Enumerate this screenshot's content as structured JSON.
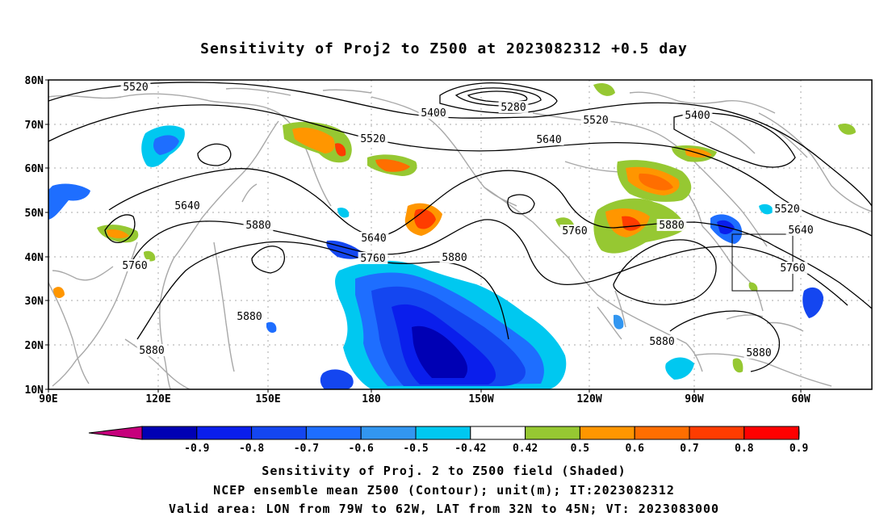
{
  "title": "Sensitivity of Proj2 to Z500 at 2023082312 +0.5 day",
  "axes": {
    "lat_labels": [
      "80N",
      "70N",
      "60N",
      "50N",
      "40N",
      "30N",
      "20N",
      "10N"
    ],
    "lon_labels": [
      "90E",
      "120E",
      "150E",
      "180",
      "150W",
      "120W",
      "90W",
      "60W"
    ]
  },
  "contour_labels": [
    "5520",
    "5400",
    "5280",
    "5520",
    "5400",
    "5520",
    "5640",
    "5640",
    "5880",
    "5640",
    "5760",
    "5880",
    "5760",
    "5880",
    "5520",
    "5640",
    "5760",
    "5760",
    "5880",
    "5880",
    "5880",
    "5880"
  ],
  "colorbar": {
    "labels": [
      "-0.9",
      "-0.8",
      "-0.7",
      "-0.6",
      "-0.5",
      "-0.42",
      "0.42",
      "0.5",
      "0.6",
      "0.7",
      "0.8",
      "0.9"
    ],
    "colors": [
      "#c6007c",
      "#0000b4",
      "#0a1eec",
      "#1446f0",
      "#1e6eff",
      "#3296f0",
      "#00c8f0",
      "#ffffff",
      "#96c832",
      "#ff9600",
      "#ff6e00",
      "#ff3c00",
      "#ff0000",
      "#ff9bc8"
    ]
  },
  "validation_box": {
    "lon_from": "79W",
    "lon_to": "62W",
    "lat_from": "32N",
    "lat_to": "45N"
  },
  "captions": [
    "Sensitivity of Proj. 2 to Z500 field (Shaded)",
    "NCEP ensemble mean Z500 (Contour); unit(m); IT:2023082312",
    "Valid area: LON from 79W to 62W, LAT from 32N to 45N; VT: 2023083000"
  ]
}
